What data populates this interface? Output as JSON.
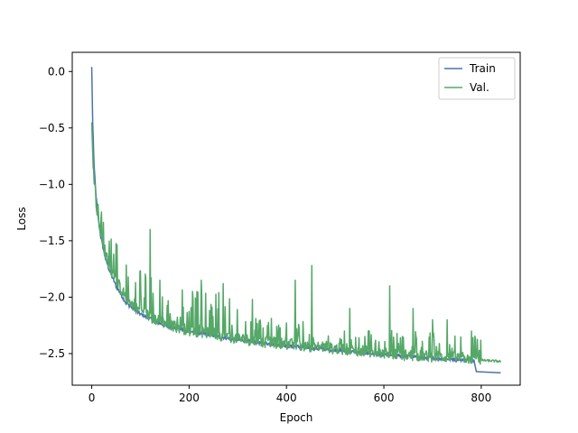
{
  "chart_data": {
    "type": "line",
    "title": "",
    "xlabel": "Epoch",
    "ylabel": "Loss",
    "xlim": [
      -40,
      880
    ],
    "ylim": [
      -2.78,
      0.17
    ],
    "xticks": [
      0,
      200,
      400,
      600,
      800
    ],
    "xtick_labels": [
      "0",
      "200",
      "400",
      "600",
      "800"
    ],
    "yticks": [
      0.0,
      -0.5,
      -1.0,
      -1.5,
      -2.0,
      -2.5
    ],
    "ytick_labels": [
      "0.0",
      "−0.5",
      "−1.0",
      "−1.5",
      "−2.0",
      "−2.5"
    ],
    "grid": false,
    "legend_position": "top-right",
    "series": [
      {
        "name": "Train",
        "color": "#4c72b0",
        "x": [
          0,
          2,
          5,
          8,
          12,
          18,
          25,
          35,
          50,
          70,
          100,
          150,
          200,
          300,
          400,
          500,
          600,
          700,
          785,
          790,
          840
        ],
        "y": [
          0.04,
          -0.45,
          -0.85,
          -1.05,
          -1.25,
          -1.45,
          -1.6,
          -1.75,
          -1.9,
          -2.05,
          -2.15,
          -2.25,
          -2.3,
          -2.38,
          -2.43,
          -2.47,
          -2.51,
          -2.54,
          -2.56,
          -2.66,
          -2.67
        ]
      },
      {
        "name": "Val.",
        "color": "#55a868",
        "x": [
          0,
          3,
          6,
          10,
          15,
          20,
          30,
          40,
          55,
          70,
          90,
          110,
          130,
          160,
          200,
          250,
          300,
          350,
          400,
          450,
          500,
          550,
          600,
          650,
          700,
          750,
          790,
          800,
          840
        ],
        "y": [
          -0.45,
          -0.85,
          -1.0,
          -1.2,
          -1.35,
          -1.5,
          -1.65,
          -1.78,
          -1.9,
          -2.0,
          -2.1,
          -2.15,
          -2.2,
          -2.25,
          -2.3,
          -2.33,
          -2.37,
          -2.4,
          -2.42,
          -2.44,
          -2.46,
          -2.48,
          -2.5,
          -2.52,
          -2.53,
          -2.54,
          -2.55,
          -2.56,
          -2.57
        ],
        "spikes": [
          [
            120,
            -1.4
          ],
          [
            140,
            -1.85
          ],
          [
            207,
            -1.95
          ],
          [
            225,
            -1.85
          ],
          [
            270,
            -1.88
          ],
          [
            330,
            -2.02
          ],
          [
            418,
            -1.85
          ],
          [
            452,
            -1.72
          ],
          [
            530,
            -2.1
          ],
          [
            612,
            -1.9
          ],
          [
            660,
            -2.1
          ],
          [
            700,
            -2.2
          ],
          [
            730,
            -2.2
          ],
          [
            780,
            -2.3
          ]
        ]
      }
    ]
  }
}
